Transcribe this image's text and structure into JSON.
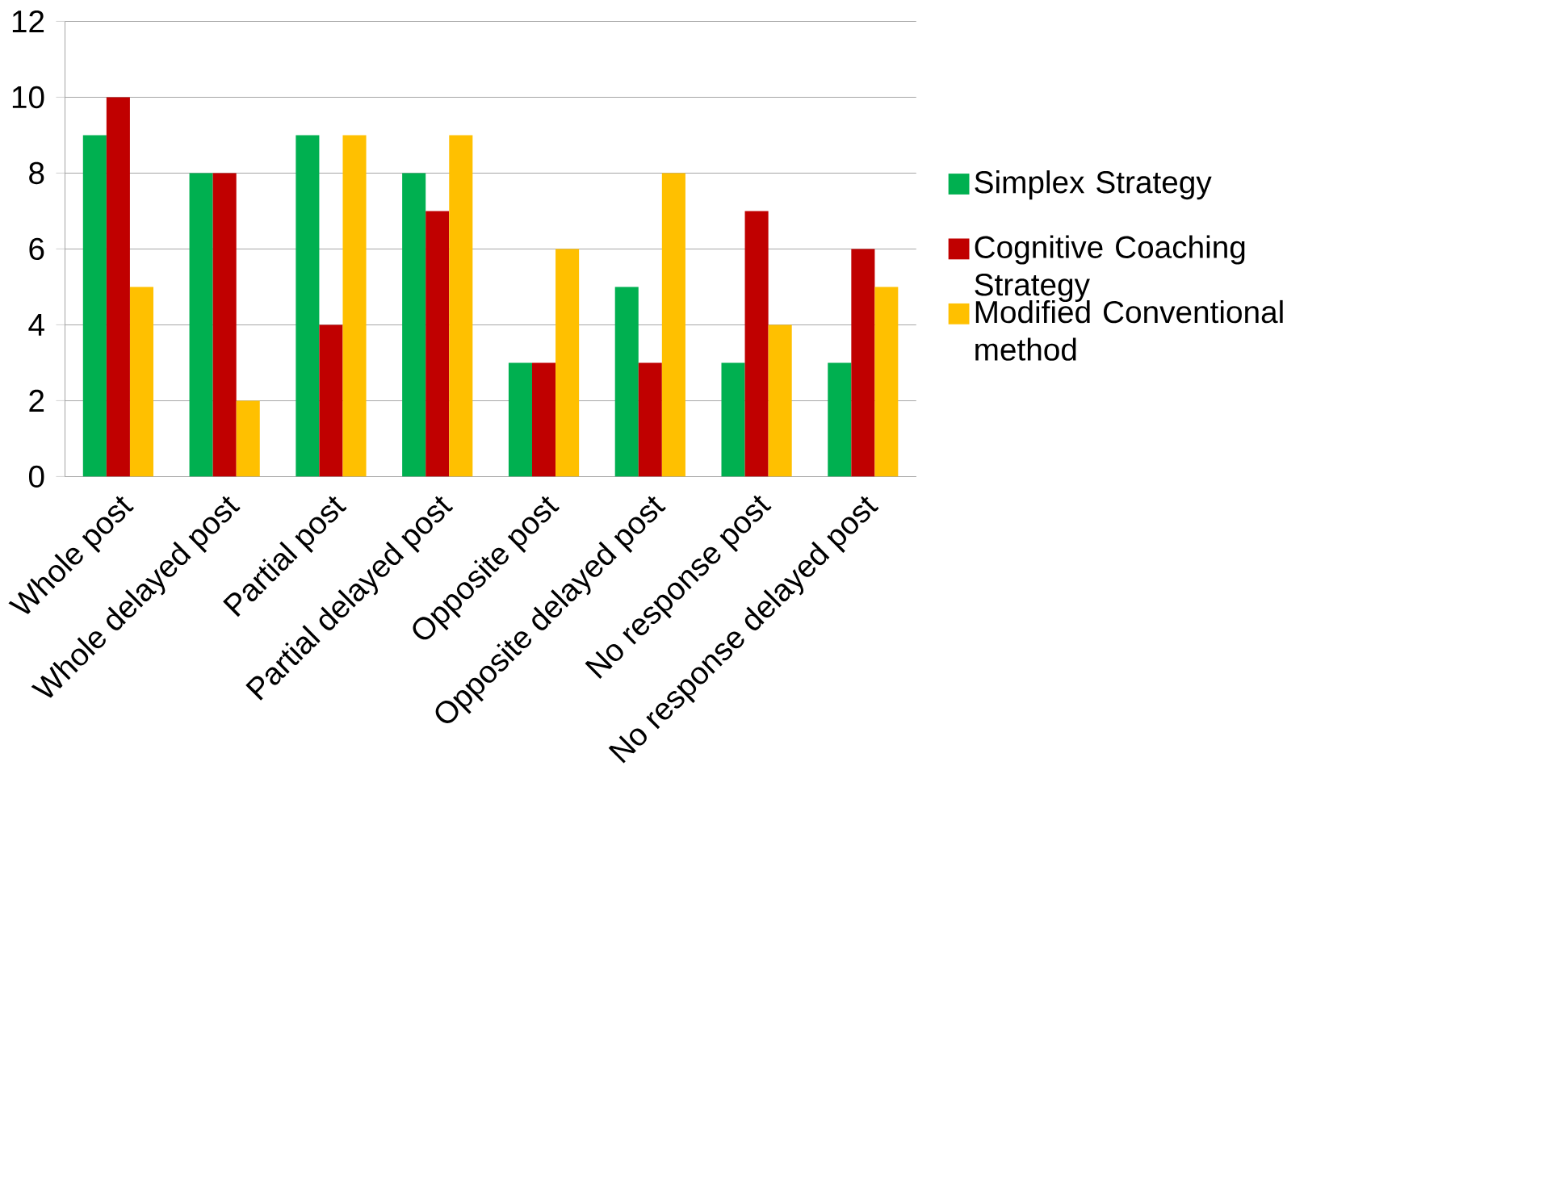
{
  "chart_data": {
    "type": "bar",
    "categories": [
      "Whole post",
      "Whole delayed post",
      "Partial post",
      "Partial delayed post",
      "Opposite post",
      "Opposite delayed post",
      "No response post",
      "No response delayed post"
    ],
    "series": [
      {
        "name": "Simplex Strategy",
        "color": "#00b050",
        "values": [
          9,
          8,
          9,
          8,
          3,
          5,
          3,
          3
        ]
      },
      {
        "name": "Cognitive Coaching Strategy",
        "color": "#c00000",
        "values": [
          10,
          8,
          4,
          7,
          3,
          3,
          7,
          6
        ]
      },
      {
        "name": "Modified Conventional method",
        "color": "#ffc000",
        "values": [
          5,
          2,
          9,
          9,
          6,
          8,
          4,
          5
        ]
      }
    ],
    "ylim": [
      0,
      12
    ],
    "yticks": [
      0,
      2,
      4,
      6,
      8,
      10,
      12
    ],
    "grid": "y",
    "legend": "right"
  }
}
